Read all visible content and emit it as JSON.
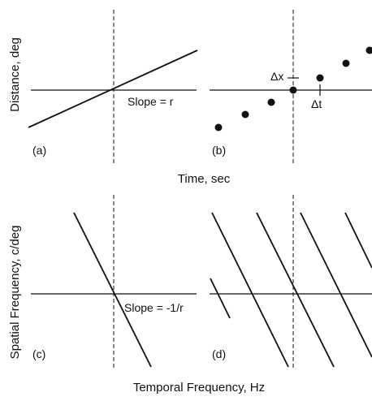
{
  "labels": {
    "y_top": "Distance, deg",
    "x_top": "Time, sec",
    "y_bottom": "Spatial Frequency, c/deg",
    "x_bottom": "Temporal Frequency, Hz"
  },
  "panels": {
    "a": {
      "tag": "(a)",
      "slope_label": "Slope = r"
    },
    "b": {
      "tag": "(b)",
      "delta_x": "Δx",
      "delta_t": "Δt"
    },
    "c": {
      "tag": "(c)",
      "slope_label": "Slope = -1/r"
    },
    "d": {
      "tag": "(d)"
    }
  }
}
